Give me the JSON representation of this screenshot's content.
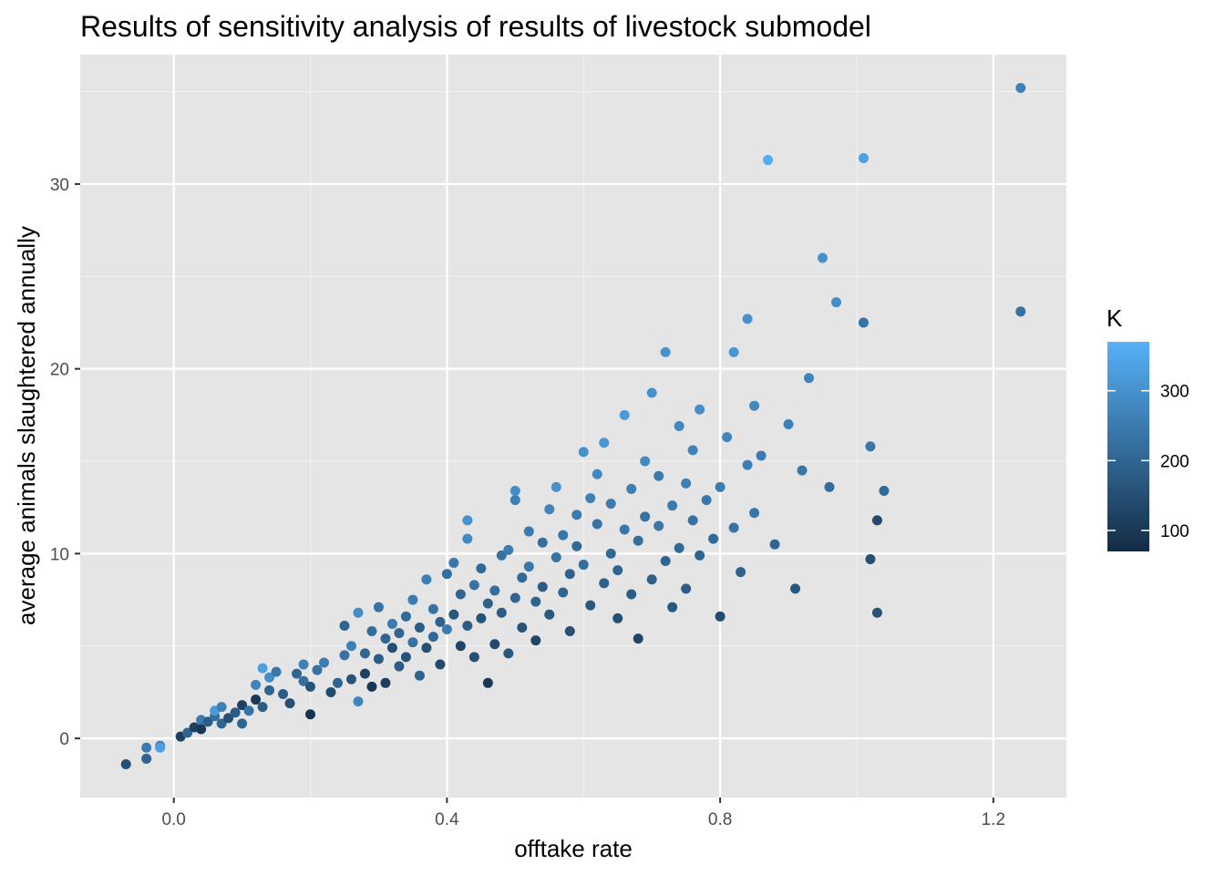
{
  "chart_data": {
    "type": "scatter",
    "title": "Results of sensitivity analysis of results of livestock submodel",
    "xlabel": "offtake rate",
    "ylabel": "average animals slaughtered annually",
    "xlim": [
      -0.137,
      1.307
    ],
    "ylim": [
      -3.2,
      37.0
    ],
    "x_ticks": [
      0.0,
      0.4,
      0.8,
      1.2
    ],
    "x_tick_labels": [
      "0.0",
      "0.4",
      "0.8",
      "1.2"
    ],
    "y_ticks": [
      0,
      10,
      20,
      30
    ],
    "y_tick_labels": [
      "0",
      "10",
      "20",
      "30"
    ],
    "grid": true,
    "panel_background": "#e5e5e5",
    "color_scale": {
      "name": "K",
      "low_color": "#132b43",
      "high_color": "#56b1f7",
      "min": 70,
      "max": 370,
      "breaks": [
        100,
        200,
        300
      ],
      "break_labels": [
        "100",
        "200",
        "300"
      ],
      "legend_position": "right"
    },
    "points": [
      [
        -0.07,
        -1.4,
        150
      ],
      [
        -0.04,
        -0.5,
        250
      ],
      [
        -0.04,
        -1.1,
        200
      ],
      [
        -0.02,
        -0.4,
        250
      ],
      [
        -0.02,
        -0.5,
        330
      ],
      [
        0.01,
        0.1,
        120
      ],
      [
        0.02,
        0.3,
        200
      ],
      [
        0.03,
        0.6,
        120
      ],
      [
        0.04,
        1.0,
        250
      ],
      [
        0.04,
        0.5,
        100
      ],
      [
        0.05,
        0.9,
        180
      ],
      [
        0.06,
        1.2,
        220
      ],
      [
        0.06,
        1.5,
        320
      ],
      [
        0.07,
        1.7,
        260
      ],
      [
        0.07,
        0.8,
        200
      ],
      [
        0.08,
        1.1,
        150
      ],
      [
        0.09,
        1.4,
        180
      ],
      [
        0.1,
        1.8,
        120
      ],
      [
        0.1,
        0.8,
        200
      ],
      [
        0.11,
        1.5,
        230
      ],
      [
        0.12,
        2.9,
        270
      ],
      [
        0.12,
        2.1,
        100
      ],
      [
        0.13,
        3.8,
        330
      ],
      [
        0.13,
        1.7,
        180
      ],
      [
        0.14,
        2.6,
        200
      ],
      [
        0.14,
        3.3,
        290
      ],
      [
        0.15,
        3.6,
        240
      ],
      [
        0.16,
        2.4,
        180
      ],
      [
        0.17,
        1.9,
        150
      ],
      [
        0.18,
        3.5,
        200
      ],
      [
        0.19,
        4.0,
        260
      ],
      [
        0.19,
        3.1,
        220
      ],
      [
        0.2,
        2.8,
        160
      ],
      [
        0.2,
        1.3,
        90
      ],
      [
        0.21,
        3.7,
        230
      ],
      [
        0.22,
        4.1,
        250
      ],
      [
        0.23,
        2.5,
        140
      ],
      [
        0.24,
        3.0,
        200
      ],
      [
        0.25,
        4.5,
        230
      ],
      [
        0.25,
        6.1,
        200
      ],
      [
        0.26,
        3.2,
        160
      ],
      [
        0.26,
        5.0,
        260
      ],
      [
        0.27,
        6.8,
        290
      ],
      [
        0.27,
        2.0,
        270
      ],
      [
        0.28,
        4.6,
        200
      ],
      [
        0.28,
        3.5,
        120
      ],
      [
        0.29,
        5.8,
        220
      ],
      [
        0.29,
        2.8,
        100
      ],
      [
        0.3,
        4.3,
        180
      ],
      [
        0.3,
        7.1,
        230
      ],
      [
        0.31,
        5.4,
        200
      ],
      [
        0.31,
        3.0,
        110
      ],
      [
        0.32,
        4.9,
        150
      ],
      [
        0.32,
        6.2,
        250
      ],
      [
        0.33,
        5.7,
        200
      ],
      [
        0.33,
        3.9,
        180
      ],
      [
        0.34,
        6.6,
        210
      ],
      [
        0.34,
        4.4,
        160
      ],
      [
        0.35,
        5.2,
        230
      ],
      [
        0.35,
        7.5,
        250
      ],
      [
        0.36,
        3.4,
        200
      ],
      [
        0.36,
        6.0,
        180
      ],
      [
        0.37,
        4.9,
        150
      ],
      [
        0.37,
        8.6,
        260
      ],
      [
        0.38,
        5.5,
        210
      ],
      [
        0.38,
        7.0,
        230
      ],
      [
        0.39,
        6.3,
        190
      ],
      [
        0.39,
        4.0,
        140
      ],
      [
        0.4,
        8.9,
        220
      ],
      [
        0.4,
        5.9,
        250
      ],
      [
        0.41,
        6.7,
        170
      ],
      [
        0.41,
        9.5,
        240
      ],
      [
        0.42,
        5.0,
        130
      ],
      [
        0.42,
        7.8,
        200
      ],
      [
        0.43,
        6.1,
        180
      ],
      [
        0.43,
        10.8,
        280
      ],
      [
        0.43,
        11.8,
        300
      ],
      [
        0.44,
        8.3,
        230
      ],
      [
        0.44,
        4.4,
        150
      ],
      [
        0.45,
        9.2,
        210
      ],
      [
        0.45,
        6.5,
        160
      ],
      [
        0.46,
        7.3,
        190
      ],
      [
        0.46,
        3.0,
        100
      ],
      [
        0.47,
        8.0,
        220
      ],
      [
        0.47,
        5.1,
        140
      ],
      [
        0.48,
        9.9,
        230
      ],
      [
        0.48,
        6.8,
        180
      ],
      [
        0.49,
        10.2,
        250
      ],
      [
        0.49,
        4.6,
        170
      ],
      [
        0.5,
        7.6,
        200
      ],
      [
        0.5,
        12.9,
        260
      ],
      [
        0.5,
        13.4,
        290
      ],
      [
        0.51,
        8.7,
        210
      ],
      [
        0.51,
        6.0,
        160
      ],
      [
        0.52,
        9.3,
        240
      ],
      [
        0.52,
        11.2,
        250
      ],
      [
        0.53,
        7.4,
        190
      ],
      [
        0.53,
        5.3,
        130
      ],
      [
        0.54,
        10.6,
        220
      ],
      [
        0.54,
        8.2,
        180
      ],
      [
        0.55,
        12.4,
        270
      ],
      [
        0.55,
        6.7,
        170
      ],
      [
        0.56,
        9.8,
        230
      ],
      [
        0.56,
        13.6,
        300
      ],
      [
        0.57,
        7.9,
        200
      ],
      [
        0.57,
        11.0,
        240
      ],
      [
        0.58,
        8.9,
        190
      ],
      [
        0.58,
        5.8,
        150
      ],
      [
        0.59,
        10.4,
        210
      ],
      [
        0.59,
        12.1,
        250
      ],
      [
        0.6,
        9.4,
        220
      ],
      [
        0.6,
        15.5,
        300
      ],
      [
        0.61,
        7.2,
        170
      ],
      [
        0.61,
        13.0,
        260
      ],
      [
        0.62,
        11.6,
        230
      ],
      [
        0.62,
        14.3,
        280
      ],
      [
        0.63,
        8.4,
        190
      ],
      [
        0.63,
        16.0,
        310
      ],
      [
        0.64,
        10.0,
        210
      ],
      [
        0.64,
        12.7,
        250
      ],
      [
        0.65,
        6.5,
        150
      ],
      [
        0.65,
        9.1,
        200
      ],
      [
        0.66,
        11.3,
        240
      ],
      [
        0.66,
        17.5,
        320
      ],
      [
        0.67,
        7.8,
        180
      ],
      [
        0.67,
        13.5,
        260
      ],
      [
        0.68,
        10.7,
        220
      ],
      [
        0.68,
        5.4,
        130
      ],
      [
        0.69,
        12.0,
        230
      ],
      [
        0.69,
        15.0,
        280
      ],
      [
        0.7,
        8.6,
        190
      ],
      [
        0.7,
        18.7,
        300
      ],
      [
        0.71,
        11.5,
        240
      ],
      [
        0.71,
        14.2,
        250
      ],
      [
        0.72,
        9.6,
        200
      ],
      [
        0.72,
        20.9,
        300
      ],
      [
        0.73,
        12.6,
        250
      ],
      [
        0.73,
        7.1,
        170
      ],
      [
        0.74,
        10.3,
        210
      ],
      [
        0.74,
        16.9,
        280
      ],
      [
        0.75,
        13.8,
        260
      ],
      [
        0.75,
        8.1,
        180
      ],
      [
        0.76,
        11.8,
        230
      ],
      [
        0.76,
        15.6,
        270
      ],
      [
        0.77,
        9.9,
        200
      ],
      [
        0.77,
        17.8,
        290
      ],
      [
        0.78,
        12.9,
        240
      ],
      [
        0.79,
        10.8,
        210
      ],
      [
        0.8,
        13.6,
        250
      ],
      [
        0.8,
        6.6,
        140
      ],
      [
        0.81,
        16.3,
        270
      ],
      [
        0.82,
        11.4,
        230
      ],
      [
        0.82,
        20.9,
        310
      ],
      [
        0.83,
        9.0,
        190
      ],
      [
        0.84,
        14.8,
        260
      ],
      [
        0.84,
        22.7,
        300
      ],
      [
        0.85,
        12.2,
        240
      ],
      [
        0.85,
        18.0,
        280
      ],
      [
        0.86,
        15.3,
        250
      ],
      [
        0.87,
        31.3,
        360
      ],
      [
        0.88,
        10.5,
        200
      ],
      [
        0.9,
        17.0,
        260
      ],
      [
        0.91,
        8.1,
        170
      ],
      [
        0.92,
        14.5,
        240
      ],
      [
        0.93,
        19.5,
        270
      ],
      [
        0.95,
        26.0,
        300
      ],
      [
        0.96,
        13.6,
        220
      ],
      [
        0.97,
        23.6,
        290
      ],
      [
        1.01,
        31.4,
        330
      ],
      [
        1.01,
        22.5,
        230
      ],
      [
        1.02,
        15.8,
        240
      ],
      [
        1.02,
        9.7,
        150
      ],
      [
        1.03,
        6.8,
        160
      ],
      [
        1.03,
        11.8,
        140
      ],
      [
        1.04,
        13.4,
        210
      ],
      [
        1.24,
        35.2,
        260
      ],
      [
        1.24,
        23.1,
        230
      ]
    ]
  }
}
